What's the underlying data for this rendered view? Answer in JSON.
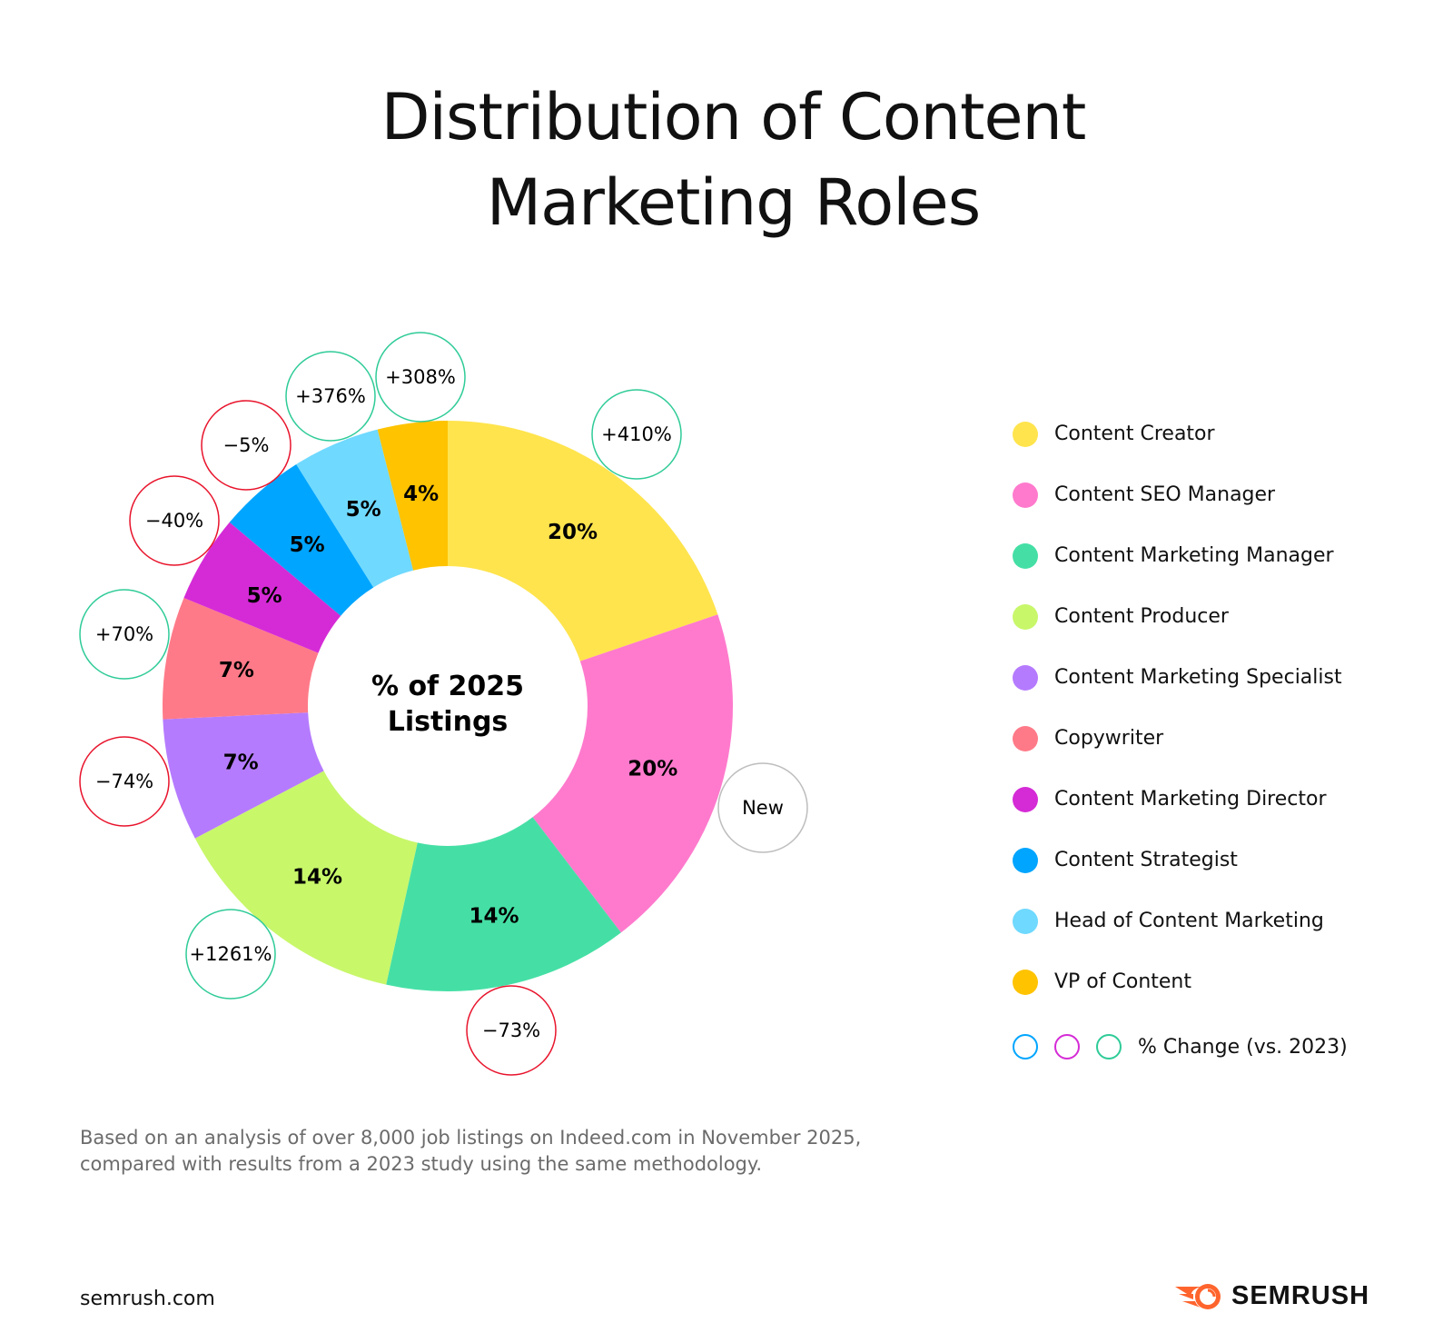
{
  "title_lines": [
    "Distribution of Content",
    "Marketing Roles"
  ],
  "chart_data": {
    "type": "pie",
    "variant": "donut",
    "center_label": [
      "% of 2025",
      "Listings"
    ],
    "categories": [
      "Content Creator",
      "Content SEO Manager",
      "Content Marketing Manager",
      "Content Producer",
      "Content Marketing Specialist",
      "Copywriter",
      "Content Marketing Director",
      "Content Strategist",
      "Head of Content Marketing",
      "VP of Content"
    ],
    "values": [
      20,
      20,
      14,
      14,
      7,
      7,
      5,
      5,
      5,
      4
    ],
    "value_labels": [
      "20%",
      "20%",
      "14%",
      "14%",
      "7%",
      "7%",
      "5%",
      "5%",
      "5%",
      "4%"
    ],
    "colors": [
      "#FFE44D",
      "#FF7ACD",
      "#45DFA5",
      "#C8F76A",
      "#B57BFF",
      "#FF7A88",
      "#D52BD6",
      "#00A5FF",
      "#6FD9FF",
      "#FFC300"
    ],
    "change_vs_2023": [
      "+410%",
      "New",
      "−73%",
      "+1261%",
      "−74%",
      "+70%",
      "−40%",
      "−5%",
      "+376%",
      "+308%"
    ],
    "change_colors": [
      "#2FCB98",
      "#BDBDBD",
      "#E8142C",
      "#2FCB98",
      "#E8142C",
      "#2FCB98",
      "#E8142C",
      "#E8142C",
      "#2FCB98",
      "#2FCB98"
    ],
    "legend_placement": "right"
  },
  "change_key": {
    "label": "% Change (vs. 2023)",
    "colors": [
      "#00A5FF",
      "#D52BD6",
      "#2FCB98"
    ]
  },
  "note_lines": [
    "Based on an analysis of over 8,000 job listings on Indeed.com in November 2025,",
    "compared with results from a 2023 study using the same methodology."
  ],
  "site": "semrush.com",
  "logo": {
    "text": "SEMRUSH",
    "color": "#FF642D"
  }
}
